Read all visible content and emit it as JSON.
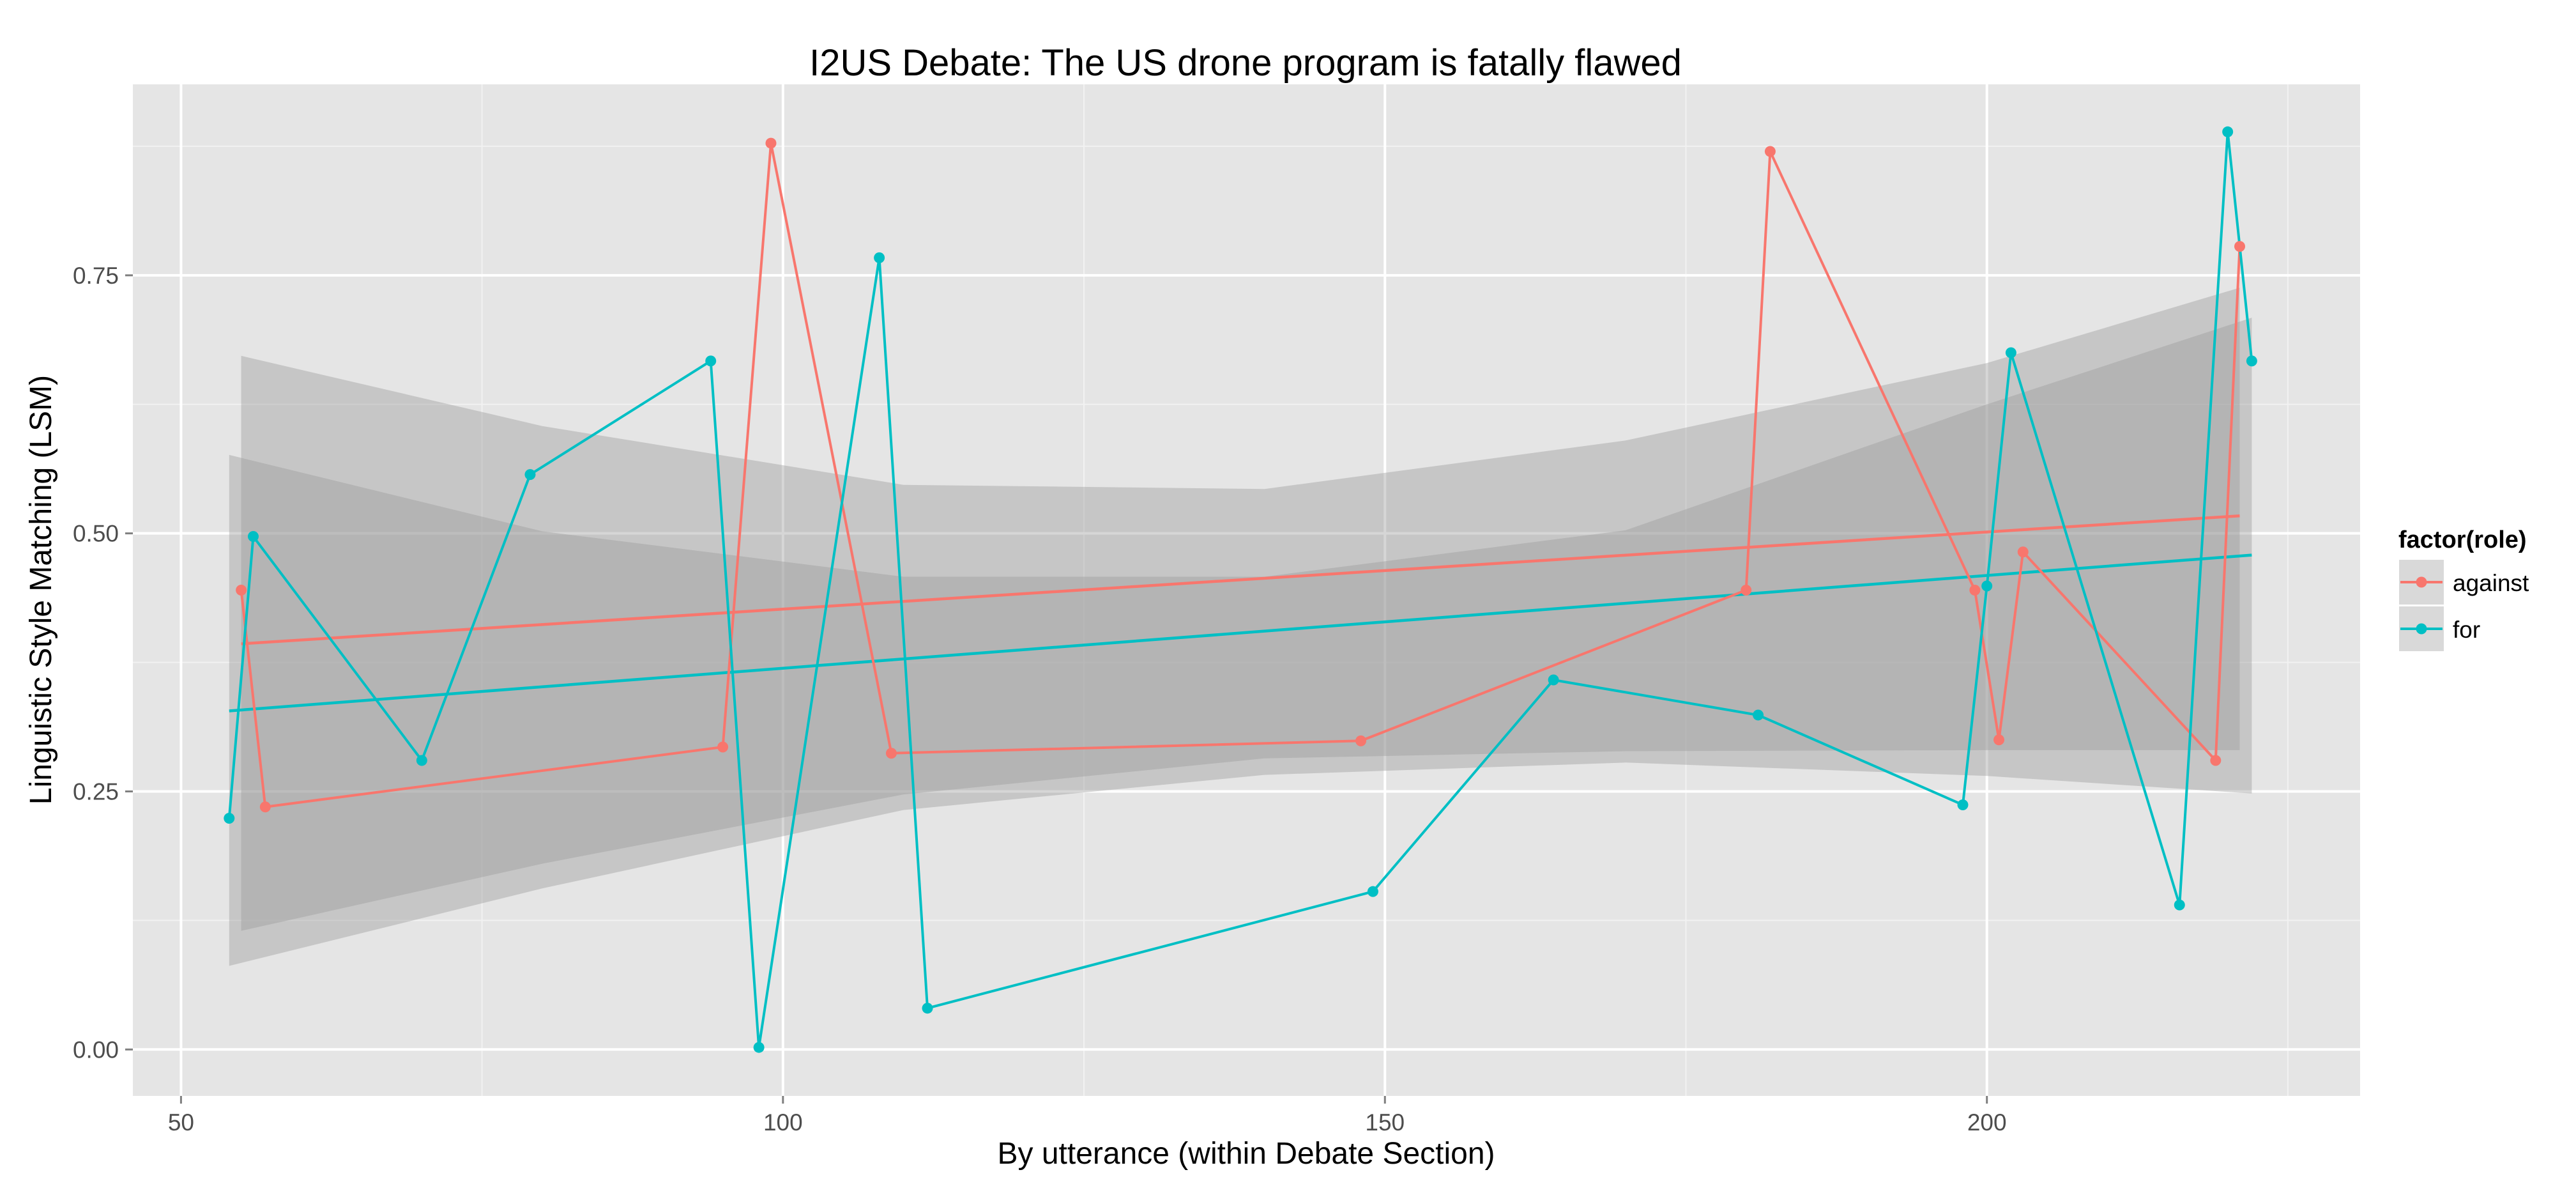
{
  "chart_data": {
    "type": "line",
    "title": "I2US Debate: The US drone program is fatally flawed",
    "xlabel": "By utterance (within Debate Section)",
    "ylabel": "Linguistic Style Matching (LSM)",
    "xlim": [
      46,
      231
    ],
    "ylim": [
      -0.045,
      0.935
    ],
    "x_ticks": [
      50,
      100,
      150,
      200
    ],
    "x_tick_labels": [
      "50",
      "100",
      "150",
      "200"
    ],
    "y_ticks": [
      0,
      0.25,
      0.5,
      0.75
    ],
    "y_tick_labels": [
      "0.00",
      "0.25",
      "0.50",
      "0.75"
    ],
    "grid": true,
    "legend": {
      "title": "factor(role)",
      "position": "right",
      "entries": [
        "against",
        "for"
      ]
    },
    "series": [
      {
        "name": "against",
        "color": "#f8766d",
        "x": [
          55,
          57,
          95,
          99,
          109,
          148,
          180,
          182,
          199,
          201,
          203,
          219,
          221
        ],
        "y": [
          0.445,
          0.235,
          0.293,
          0.878,
          0.287,
          0.299,
          0.445,
          0.87,
          0.445,
          0.3,
          0.482,
          0.28,
          0.778
        ],
        "trend": {
          "x": [
            55,
            221
          ],
          "y": [
            0.393,
            0.517
          ],
          "band_x": [
            55,
            80,
            110,
            140,
            170,
            200,
            221
          ],
          "band_lower": [
            0.115,
            0.18,
            0.247,
            0.282,
            0.289,
            0.29,
            0.29
          ],
          "band_upper": [
            0.672,
            0.604,
            0.547,
            0.543,
            0.59,
            0.665,
            0.738
          ]
        }
      },
      {
        "name": "for",
        "color": "#00bfc4",
        "x": [
          54,
          56,
          70,
          79,
          94,
          98,
          108,
          112,
          149,
          164,
          181,
          198,
          200,
          202,
          216,
          220,
          222
        ],
        "y": [
          0.224,
          0.497,
          0.28,
          0.557,
          0.667,
          0.002,
          0.767,
          0.04,
          0.153,
          0.358,
          0.324,
          0.237,
          0.449,
          0.675,
          0.14,
          0.889,
          0.667
        ],
        "trend": {
          "x": [
            54,
            222
          ],
          "y": [
            0.328,
            0.479
          ],
          "band_x": [
            54,
            80,
            110,
            140,
            170,
            200,
            222
          ],
          "band_lower": [
            0.081,
            0.156,
            0.232,
            0.266,
            0.278,
            0.265,
            0.248
          ],
          "band_upper": [
            0.576,
            0.502,
            0.458,
            0.458,
            0.503,
            0.625,
            0.709
          ]
        }
      }
    ]
  }
}
